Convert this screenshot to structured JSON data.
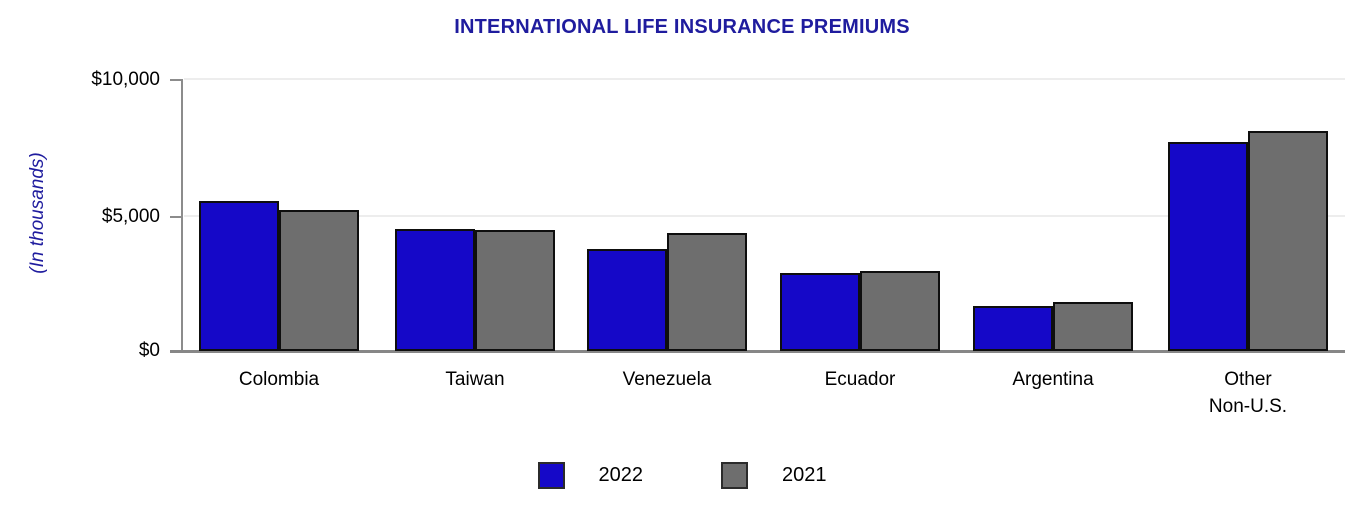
{
  "title": "INTERNATIONAL LIFE INSURANCE PREMIUMS",
  "colors": {
    "title_text": "#1f1c9e",
    "series_2022": "#1508c8",
    "series_2021": "#6e6e6e",
    "bar_border": "#0e0e0e",
    "axis": "#8c8c8c",
    "gridline": "#ededed"
  },
  "y_axis": {
    "label": "(In thousands)",
    "ticks": {
      "top": "$10,000",
      "mid": "$5,000",
      "base": "$0"
    }
  },
  "legend": {
    "items": [
      {
        "label": "2022",
        "color": "#1508c8"
      },
      {
        "label": "2021",
        "color": "#6e6e6e"
      }
    ]
  },
  "chart_data": {
    "type": "bar",
    "title": "INTERNATIONAL LIFE INSURANCE PREMIUMS",
    "ylabel": "(In thousands)",
    "ylim": [
      0,
      10000
    ],
    "ytick_values": [
      0,
      5000,
      10000
    ],
    "ytick_labels": [
      "$0",
      "$5,000",
      "$10,000"
    ],
    "grid": "horizontal gridlines at 5000 and 10000",
    "legend_position": "bottom-center",
    "categories": [
      "Colombia",
      "Taiwan",
      "Venezuela",
      "Ecuador",
      "Argentina",
      "Other\nNon-U.S."
    ],
    "series": [
      {
        "name": "2022",
        "color": "#1508c8",
        "values": [
          5500,
          4500,
          3750,
          2850,
          1650,
          7700
        ]
      },
      {
        "name": "2021",
        "color": "#6e6e6e",
        "values": [
          5200,
          4450,
          4350,
          2950,
          1800,
          8100
        ]
      }
    ]
  }
}
